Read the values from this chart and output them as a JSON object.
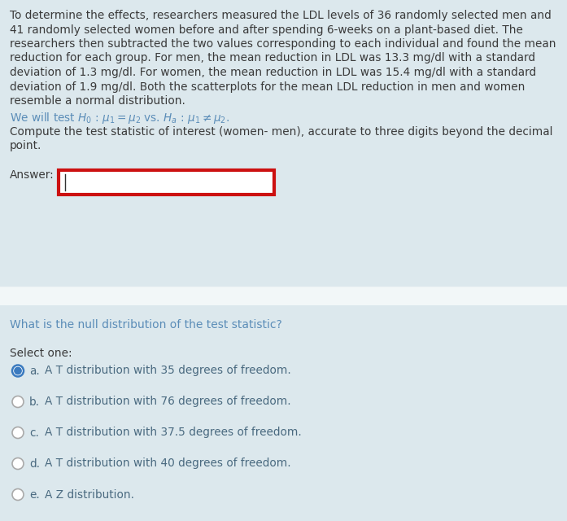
{
  "bg_color": "#dce8ed",
  "white_divider_color": "#f0f4f5",
  "text_color_body": "#3a3a3a",
  "text_color_blue": "#5b8db8",
  "text_color_option": "#4a6a80",
  "answer_box_color": "#cc1111",
  "radio_color_selected": "#3a7abf",
  "radio_color_unselected": "#aaaaaa",
  "para_lines": [
    "To determine the effects, researchers measured the LDL levels of 36 randomly selected men and",
    "41 randomly selected women before and after spending 6-weeks on a plant-based diet. The",
    "researchers then subtracted the two values corresponding to each individual and found the mean",
    "reduction for each group. For men, the mean reduction in LDL was 13.3 mg/dl with a standard",
    "deviation of 1.3 mg/dl. For women, the mean reduction in LDL was 15.4 mg/dl with a standard",
    "deviation of 1.9 mg/dl. Both the scatterplots for the mean LDL reduction in men and women",
    "resemble a normal distribution."
  ],
  "section2_question": "What is the null distribution of the test statistic?",
  "select_one": "Select one:",
  "options": [
    {
      "label": "a.",
      "text": "A T distribution with 35 degrees of freedom.",
      "selected": true
    },
    {
      "label": "b.",
      "text": "A T distribution with 76 degrees of freedom.",
      "selected": false
    },
    {
      "label": "c.",
      "text": "A T distribution with 37.5 degrees of freedom.",
      "selected": false
    },
    {
      "label": "d.",
      "text": "A T distribution with 40 degrees of freedom.",
      "selected": false
    },
    {
      "label": "e.",
      "text": "A Z distribution.",
      "selected": false
    }
  ]
}
